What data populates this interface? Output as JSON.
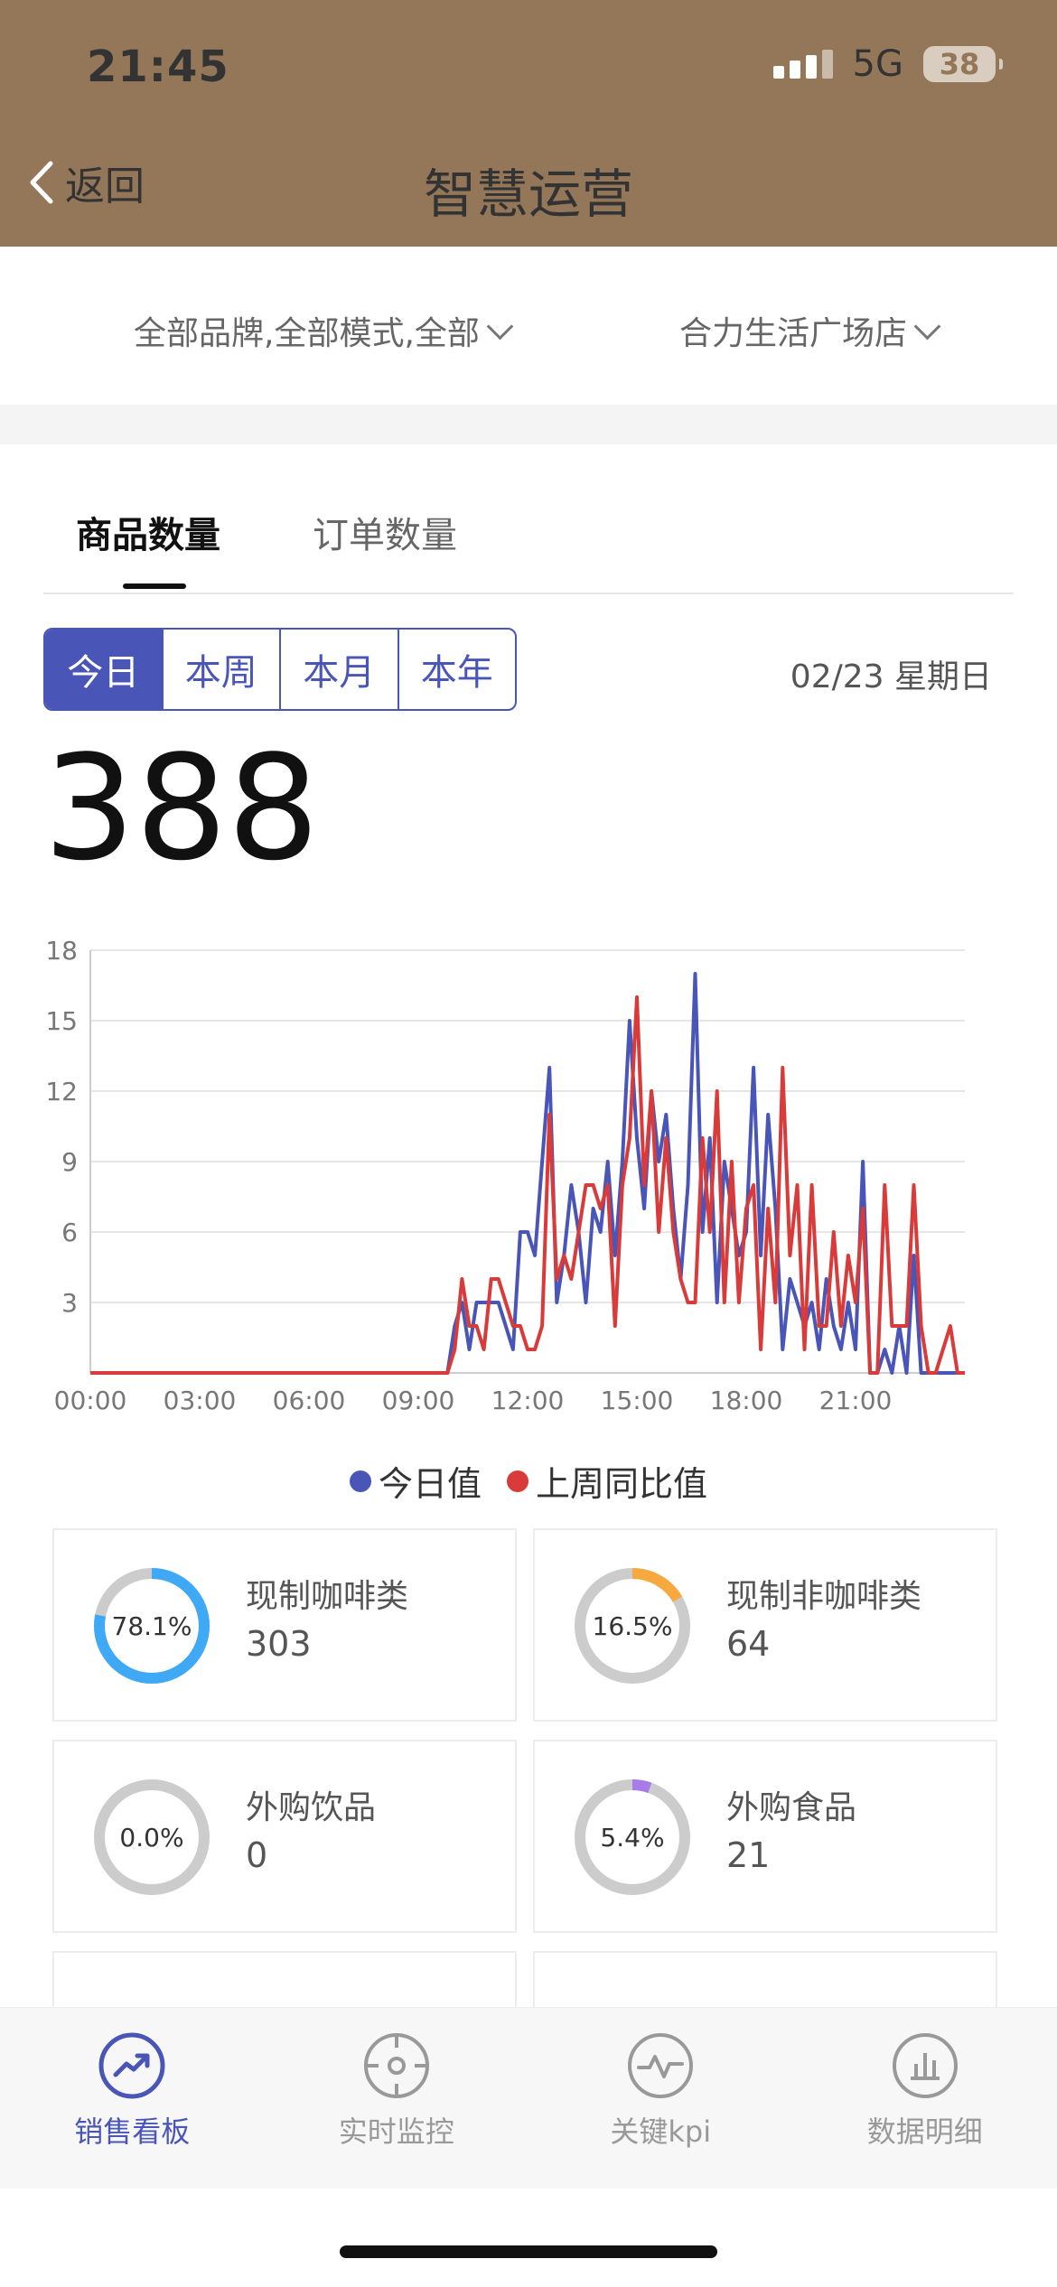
{
  "status_bar": {
    "time": "21:45",
    "network": "5G",
    "battery": "38"
  },
  "header": {
    "back_label": "返回",
    "title": "智慧运营"
  },
  "filters": {
    "brand_mode": "全部品牌,全部模式,全部",
    "store": "合力生活广场店"
  },
  "tabs": [
    {
      "label": "商品数量",
      "active": true
    },
    {
      "label": "订单数量",
      "active": false
    }
  ],
  "periods": [
    {
      "label": "今日",
      "active": true
    },
    {
      "label": "本周",
      "active": false
    },
    {
      "label": "本月",
      "active": false
    },
    {
      "label": "本年",
      "active": false
    }
  ],
  "date_label": "02/23 星期日",
  "total_count": "388",
  "colors": {
    "header": "#937758",
    "accent": "#4a55b8",
    "today": "#4a55b8",
    "last_week": "#d93a3a"
  },
  "chart_data": {
    "type": "line",
    "y_ticks": [
      "3",
      "6",
      "9",
      "12",
      "15",
      "18"
    ],
    "x_ticks": [
      "00:00",
      "03:00",
      "06:00",
      "09:00",
      "12:00",
      "15:00",
      "18:00",
      "21:00"
    ],
    "ylim": [
      0,
      18
    ],
    "xlim": [
      0,
      24
    ],
    "grid": true,
    "legend_position": "bottom",
    "series": [
      {
        "name": "今日值",
        "points": [
          [
            0,
            0
          ],
          [
            9.8,
            0
          ],
          [
            10,
            2
          ],
          [
            10.2,
            3
          ],
          [
            10.4,
            1
          ],
          [
            10.6,
            3
          ],
          [
            10.8,
            3
          ],
          [
            11,
            3
          ],
          [
            11.2,
            3
          ],
          [
            11.4,
            2
          ],
          [
            11.6,
            1
          ],
          [
            11.8,
            6
          ],
          [
            12,
            6
          ],
          [
            12.2,
            5
          ],
          [
            12.4,
            9
          ],
          [
            12.6,
            13
          ],
          [
            12.8,
            3
          ],
          [
            13,
            5
          ],
          [
            13.2,
            8
          ],
          [
            13.4,
            6
          ],
          [
            13.6,
            3
          ],
          [
            13.8,
            7
          ],
          [
            14,
            6
          ],
          [
            14.2,
            9
          ],
          [
            14.4,
            5
          ],
          [
            14.6,
            9
          ],
          [
            14.8,
            15
          ],
          [
            15,
            10
          ],
          [
            15.2,
            7
          ],
          [
            15.4,
            12
          ],
          [
            15.6,
            9
          ],
          [
            15.8,
            11
          ],
          [
            16,
            7
          ],
          [
            16.2,
            4
          ],
          [
            16.4,
            8
          ],
          [
            16.6,
            17
          ],
          [
            16.8,
            6
          ],
          [
            17,
            10
          ],
          [
            17.2,
            3
          ],
          [
            17.4,
            9
          ],
          [
            17.6,
            7
          ],
          [
            17.8,
            5
          ],
          [
            18,
            6
          ],
          [
            18.2,
            13
          ],
          [
            18.4,
            5
          ],
          [
            18.6,
            11
          ],
          [
            18.8,
            7
          ],
          [
            19,
            1
          ],
          [
            19.2,
            4
          ],
          [
            19.4,
            3
          ],
          [
            19.6,
            2
          ],
          [
            19.8,
            3
          ],
          [
            20,
            1
          ],
          [
            20.2,
            4
          ],
          [
            20.4,
            2
          ],
          [
            20.6,
            1
          ],
          [
            20.8,
            3
          ],
          [
            21,
            1
          ],
          [
            21.2,
            9
          ],
          [
            21.4,
            0
          ],
          [
            21.6,
            0
          ],
          [
            21.8,
            1
          ],
          [
            22,
            0
          ],
          [
            22.2,
            2
          ],
          [
            22.4,
            0
          ],
          [
            22.6,
            5
          ],
          [
            22.8,
            0
          ],
          [
            24,
            0
          ]
        ]
      },
      {
        "name": "上周同比值",
        "points": [
          [
            0,
            0
          ],
          [
            9.8,
            0
          ],
          [
            10,
            1
          ],
          [
            10.2,
            4
          ],
          [
            10.4,
            2
          ],
          [
            10.6,
            2
          ],
          [
            10.8,
            1
          ],
          [
            11,
            4
          ],
          [
            11.2,
            4
          ],
          [
            11.4,
            3
          ],
          [
            11.6,
            2
          ],
          [
            11.8,
            2
          ],
          [
            12,
            1
          ],
          [
            12.2,
            1
          ],
          [
            12.4,
            2
          ],
          [
            12.6,
            11
          ],
          [
            12.8,
            4
          ],
          [
            13,
            5
          ],
          [
            13.2,
            4
          ],
          [
            13.4,
            6
          ],
          [
            13.6,
            8
          ],
          [
            13.8,
            8
          ],
          [
            14,
            7
          ],
          [
            14.2,
            8
          ],
          [
            14.4,
            2
          ],
          [
            14.6,
            8
          ],
          [
            14.8,
            10
          ],
          [
            15,
            16
          ],
          [
            15.2,
            8
          ],
          [
            15.4,
            12
          ],
          [
            15.6,
            6
          ],
          [
            15.8,
            10
          ],
          [
            16,
            6
          ],
          [
            16.2,
            4
          ],
          [
            16.4,
            3
          ],
          [
            16.6,
            3
          ],
          [
            16.8,
            10
          ],
          [
            17,
            6
          ],
          [
            17.2,
            12
          ],
          [
            17.4,
            3
          ],
          [
            17.6,
            9
          ],
          [
            17.8,
            3
          ],
          [
            18,
            7
          ],
          [
            18.2,
            8
          ],
          [
            18.4,
            1
          ],
          [
            18.6,
            7
          ],
          [
            18.8,
            3
          ],
          [
            19,
            13
          ],
          [
            19.2,
            5
          ],
          [
            19.4,
            8
          ],
          [
            19.6,
            1
          ],
          [
            19.8,
            8
          ],
          [
            20,
            2
          ],
          [
            20.2,
            2
          ],
          [
            20.4,
            6
          ],
          [
            20.6,
            2
          ],
          [
            20.8,
            5
          ],
          [
            21,
            3
          ],
          [
            21.2,
            7
          ],
          [
            21.4,
            0
          ],
          [
            21.6,
            0
          ],
          [
            21.8,
            8
          ],
          [
            22,
            2
          ],
          [
            22.2,
            2
          ],
          [
            22.4,
            2
          ],
          [
            22.6,
            8
          ],
          [
            22.8,
            2
          ],
          [
            23,
            0
          ],
          [
            23.2,
            0
          ],
          [
            23.4,
            1
          ],
          [
            23.6,
            2
          ],
          [
            23.8,
            0
          ],
          [
            24,
            0
          ]
        ]
      }
    ]
  },
  "legend": {
    "today": "今日值",
    "last_week": "上周同比值"
  },
  "categories": [
    {
      "name": "现制咖啡类",
      "value": "303",
      "percent_label": "78.1%",
      "percent": 78.1,
      "color": "#3fa9f5"
    },
    {
      "name": "现制非咖啡类",
      "value": "64",
      "percent_label": "16.5%",
      "percent": 16.5,
      "color": "#f5a93f"
    },
    {
      "name": "外购饮品",
      "value": "0",
      "percent_label": "0.0%",
      "percent": 0.0,
      "color": "#cccccc"
    },
    {
      "name": "外购食品",
      "value": "21",
      "percent_label": "5.4%",
      "percent": 5.4,
      "color": "#a77be8"
    }
  ],
  "bottom_nav": [
    {
      "label": "销售看板",
      "icon": "trend-up-icon",
      "active": true
    },
    {
      "label": "实时监控",
      "icon": "crosshair-icon",
      "active": false
    },
    {
      "label": "关键kpi",
      "icon": "pulse-icon",
      "active": false
    },
    {
      "label": "数据明细",
      "icon": "bar-chart-icon",
      "active": false
    }
  ]
}
